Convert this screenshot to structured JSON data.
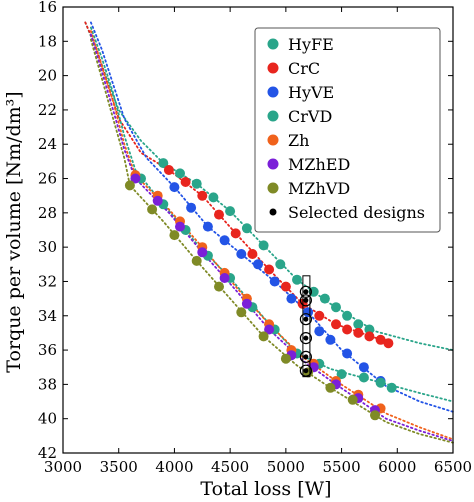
{
  "chart_data": {
    "type": "scatter",
    "xlabel": "Total loss [W]",
    "ylabel": "Torque per volume [Nm/dm³]",
    "xlim": [
      3000,
      6500
    ],
    "ylim": [
      16,
      42
    ],
    "y_inverted": true,
    "grid": false,
    "legend_position": "top-right",
    "xticks": [
      3000,
      3500,
      4000,
      4500,
      5000,
      5500,
      6000,
      6500
    ],
    "yticks": [
      16,
      18,
      20,
      22,
      24,
      26,
      28,
      30,
      32,
      34,
      36,
      38,
      40,
      42
    ],
    "series": [
      {
        "name": "HyFE",
        "color": "#2aa58a",
        "points": [
          [
            3900,
            25.1
          ],
          [
            4050,
            25.7
          ],
          [
            4200,
            26.3
          ],
          [
            4350,
            27.1
          ],
          [
            4500,
            27.9
          ],
          [
            4650,
            28.9
          ],
          [
            4800,
            29.9
          ],
          [
            4950,
            31.0
          ],
          [
            5100,
            31.9
          ],
          [
            5250,
            32.6
          ],
          [
            5350,
            33.0
          ],
          [
            5450,
            33.5
          ],
          [
            5550,
            34.0
          ],
          [
            5650,
            34.5
          ],
          [
            5750,
            34.8
          ]
        ],
        "trend": [
          [
            3200,
            16.9
          ],
          [
            3300,
            18.5
          ],
          [
            3400,
            20.3
          ],
          [
            3500,
            22.0
          ],
          [
            3700,
            23.8
          ],
          [
            3900,
            25.1
          ],
          [
            4200,
            26.3
          ],
          [
            4500,
            27.9
          ],
          [
            4800,
            29.9
          ],
          [
            5100,
            31.9
          ],
          [
            5400,
            33.3
          ],
          [
            5800,
            34.9
          ],
          [
            6200,
            35.6
          ],
          [
            6500,
            36.0
          ]
        ]
      },
      {
        "name": "CrC",
        "color": "#e8251e",
        "points": [
          [
            3950,
            25.5
          ],
          [
            4100,
            26.2
          ],
          [
            4250,
            27.0
          ],
          [
            4400,
            28.1
          ],
          [
            4550,
            29.2
          ],
          [
            4700,
            30.4
          ],
          [
            4850,
            31.3
          ],
          [
            5000,
            32.3
          ],
          [
            5150,
            33.3
          ],
          [
            5300,
            34.0
          ],
          [
            5450,
            34.5
          ],
          [
            5550,
            34.8
          ],
          [
            5650,
            35.0
          ],
          [
            5750,
            35.2
          ],
          [
            5850,
            35.4
          ],
          [
            5920,
            35.6
          ]
        ],
        "trend": [
          [
            3200,
            16.9
          ],
          [
            3300,
            18.4
          ],
          [
            3400,
            20.5
          ],
          [
            3500,
            22.5
          ],
          [
            3700,
            24.5
          ],
          [
            3950,
            25.5
          ],
          [
            4250,
            27.0
          ],
          [
            4550,
            29.2
          ],
          [
            4850,
            31.3
          ],
          [
            5150,
            33.3
          ],
          [
            5450,
            34.5
          ],
          [
            5900,
            35.5
          ]
        ]
      },
      {
        "name": "HyVE",
        "color": "#2354e6",
        "points": [
          [
            4000,
            26.5
          ],
          [
            4150,
            27.7
          ],
          [
            4300,
            28.8
          ],
          [
            4450,
            29.6
          ],
          [
            4600,
            30.4
          ],
          [
            4750,
            31.0
          ],
          [
            4900,
            32.0
          ],
          [
            5050,
            33.0
          ],
          [
            5200,
            33.8
          ],
          [
            5300,
            34.9
          ],
          [
            5400,
            35.4
          ],
          [
            5550,
            36.2
          ],
          [
            5700,
            37.0
          ],
          [
            5850,
            37.8
          ]
        ],
        "trend": [
          [
            3250,
            16.9
          ],
          [
            3350,
            18.5
          ],
          [
            3450,
            20.5
          ],
          [
            3550,
            22.5
          ],
          [
            3750,
            24.8
          ],
          [
            4000,
            26.5
          ],
          [
            4300,
            28.8
          ],
          [
            4600,
            30.4
          ],
          [
            4900,
            32.0
          ],
          [
            5200,
            33.8
          ],
          [
            5500,
            36.0
          ],
          [
            5900,
            38.1
          ],
          [
            6200,
            39.0
          ],
          [
            6500,
            39.6
          ]
        ]
      },
      {
        "name": "CrVD",
        "color": "#2aa58a",
        "points": [
          [
            3700,
            26.0
          ],
          [
            3900,
            27.5
          ],
          [
            4100,
            29.0
          ],
          [
            4300,
            30.5
          ],
          [
            4500,
            31.8
          ],
          [
            4700,
            33.5
          ],
          [
            4900,
            34.8
          ],
          [
            5100,
            36.2
          ],
          [
            5300,
            36.8
          ],
          [
            5500,
            37.4
          ],
          [
            5700,
            37.6
          ],
          [
            5850,
            37.9
          ],
          [
            5950,
            38.2
          ]
        ],
        "trend": [
          [
            3250,
            17.2
          ],
          [
            3350,
            19.0
          ],
          [
            3450,
            21.0
          ],
          [
            3550,
            23.5
          ],
          [
            3650,
            25.5
          ],
          [
            3900,
            27.5
          ],
          [
            4200,
            29.8
          ],
          [
            4500,
            31.8
          ],
          [
            4800,
            34.1
          ],
          [
            5100,
            36.2
          ],
          [
            5400,
            37.1
          ],
          [
            5800,
            37.8
          ],
          [
            6200,
            38.5
          ],
          [
            6500,
            39.0
          ]
        ]
      },
      {
        "name": "Zh",
        "color": "#f0621c",
        "points": [
          [
            3650,
            25.8
          ],
          [
            3850,
            27.0
          ],
          [
            4050,
            28.5
          ],
          [
            4250,
            30.0
          ],
          [
            4450,
            31.5
          ],
          [
            4650,
            33.0
          ],
          [
            4850,
            34.5
          ],
          [
            5050,
            36.0
          ],
          [
            5250,
            36.8
          ],
          [
            5450,
            37.8
          ],
          [
            5650,
            38.6
          ],
          [
            5850,
            39.4
          ]
        ],
        "trend": [
          [
            3250,
            17.4
          ],
          [
            3350,
            19.5
          ],
          [
            3450,
            21.5
          ],
          [
            3550,
            24.0
          ],
          [
            3650,
            25.8
          ],
          [
            3950,
            27.8
          ],
          [
            4250,
            30.0
          ],
          [
            4550,
            32.3
          ],
          [
            4850,
            34.5
          ],
          [
            5150,
            36.4
          ],
          [
            5450,
            37.8
          ],
          [
            5900,
            39.7
          ],
          [
            6200,
            40.5
          ],
          [
            6500,
            41.2
          ]
        ]
      },
      {
        "name": "MZhED",
        "color": "#7b1fd8",
        "points": [
          [
            3650,
            26.0
          ],
          [
            3850,
            27.3
          ],
          [
            4050,
            28.8
          ],
          [
            4250,
            30.3
          ],
          [
            4450,
            31.8
          ],
          [
            4650,
            33.3
          ],
          [
            4850,
            34.8
          ],
          [
            5050,
            36.3
          ],
          [
            5250,
            37.0
          ],
          [
            5450,
            38.0
          ],
          [
            5650,
            38.8
          ],
          [
            5800,
            39.5
          ]
        ],
        "trend": [
          [
            3250,
            17.6
          ],
          [
            3350,
            19.8
          ],
          [
            3450,
            22.0
          ],
          [
            3550,
            24.3
          ],
          [
            3650,
            26.0
          ],
          [
            3950,
            28.0
          ],
          [
            4250,
            30.3
          ],
          [
            4550,
            32.5
          ],
          [
            4850,
            34.8
          ],
          [
            5150,
            36.6
          ],
          [
            5450,
            38.0
          ],
          [
            5900,
            40.0
          ],
          [
            6200,
            40.7
          ],
          [
            6500,
            41.3
          ]
        ]
      },
      {
        "name": "MZhVD",
        "color": "#7f8a26",
        "points": [
          [
            3600,
            26.4
          ],
          [
            3800,
            27.8
          ],
          [
            4000,
            29.3
          ],
          [
            4200,
            30.8
          ],
          [
            4400,
            32.3
          ],
          [
            4600,
            33.8
          ],
          [
            4800,
            35.2
          ],
          [
            5000,
            36.5
          ],
          [
            5200,
            37.3
          ],
          [
            5400,
            38.2
          ],
          [
            5600,
            38.9
          ],
          [
            5800,
            39.8
          ]
        ],
        "trend": [
          [
            3250,
            17.9
          ],
          [
            3350,
            20.2
          ],
          [
            3450,
            22.5
          ],
          [
            3550,
            24.8
          ],
          [
            3600,
            26.4
          ],
          [
            3900,
            28.5
          ],
          [
            4200,
            30.8
          ],
          [
            4500,
            33.0
          ],
          [
            4800,
            35.2
          ],
          [
            5100,
            36.9
          ],
          [
            5400,
            38.2
          ],
          [
            5900,
            40.2
          ],
          [
            6200,
            40.9
          ],
          [
            6500,
            41.4
          ]
        ]
      },
      {
        "name": "Selected designs",
        "color": "#000000",
        "points": [
          [
            5180,
            32.6
          ],
          [
            5180,
            33.1
          ],
          [
            5180,
            34.2
          ],
          [
            5180,
            35.3
          ],
          [
            5180,
            36.4
          ],
          [
            5180,
            37.2
          ]
        ]
      }
    ]
  }
}
